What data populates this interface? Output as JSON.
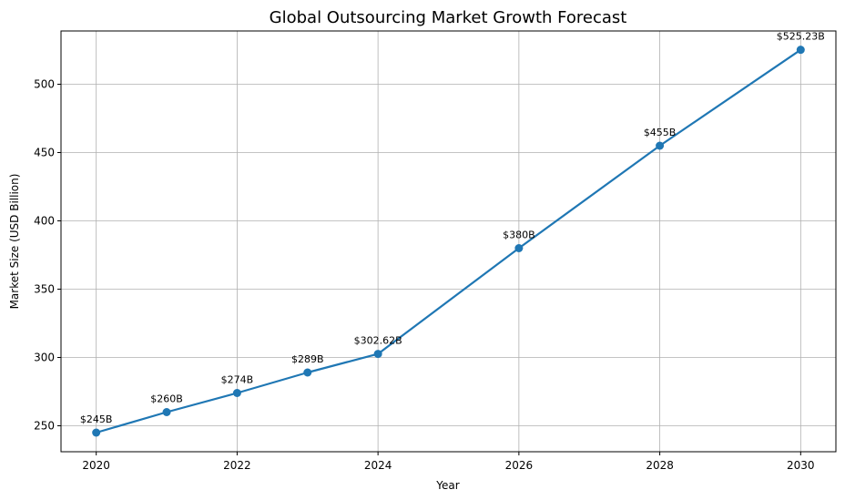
{
  "chart_data": {
    "type": "line",
    "title": "Global Outsourcing Market Growth Forecast",
    "xlabel": "Year",
    "ylabel": "Market Size (USD Billion)",
    "x": [
      2020,
      2021,
      2022,
      2023,
      2024,
      2026,
      2028,
      2030
    ],
    "y": [
      245,
      260,
      274,
      289,
      302.62,
      380,
      455,
      525.23
    ],
    "point_labels": [
      "$245B",
      "$260B",
      "$274B",
      "$289B",
      "$302.62B",
      "$380B",
      "$455B",
      "$525.23B"
    ],
    "xticks": [
      2020,
      2022,
      2024,
      2026,
      2028,
      2030
    ],
    "yticks": [
      250,
      300,
      350,
      400,
      450,
      500
    ],
    "xlim": [
      2019.5,
      2030.5
    ],
    "ylim": [
      231,
      539
    ],
    "grid": true,
    "line_color": "#1f77b4",
    "grid_color": "#b0b0b0"
  }
}
